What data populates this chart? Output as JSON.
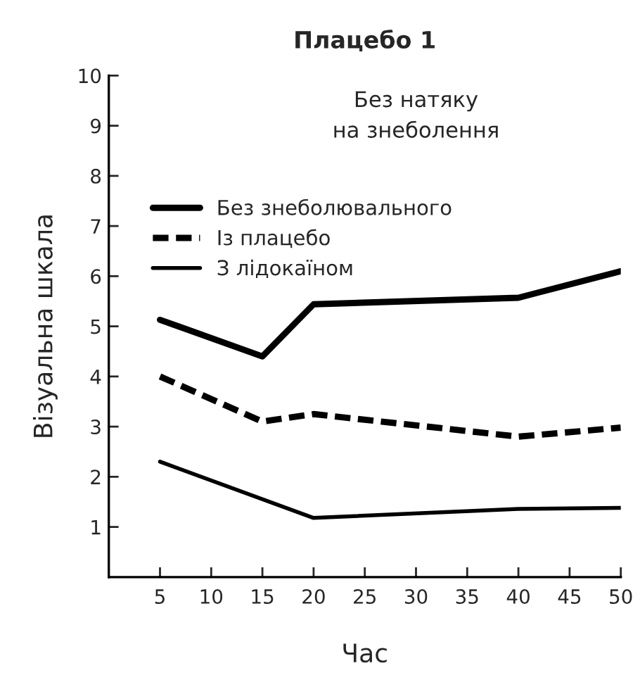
{
  "chart_data": {
    "type": "line",
    "title": "Плацебо 1",
    "xlabel": "Час",
    "ylabel": "Візуальна шкала",
    "annotations": [
      "Без натяку\nна знеболення"
    ],
    "x": [
      5,
      15,
      20,
      40,
      50
    ],
    "series": [
      {
        "name": "Без знеболювального",
        "color": "#000000",
        "line_style": "solid",
        "values": [
          5.13,
          4.4,
          5.44,
          5.57,
          6.1
        ]
      },
      {
        "name": "Із плацебо",
        "color": "#000000",
        "line_style": "dashed",
        "values": [
          4.0,
          3.1,
          3.25,
          2.8,
          2.98
        ]
      },
      {
        "name": "З лідокаїном",
        "color": "#000000",
        "line_style": "solid",
        "x": [
          5,
          20,
          40,
          50
        ],
        "values": [
          2.3,
          1.18,
          1.36,
          1.38
        ]
      }
    ],
    "xlim": [
      0,
      50
    ],
    "ylim": [
      0,
      10
    ],
    "xticks": [
      5,
      10,
      15,
      20,
      25,
      30,
      35,
      40,
      45,
      50
    ],
    "yticks": [
      1,
      2,
      3,
      4,
      5,
      6,
      7,
      8,
      9,
      10
    ],
    "grid": false,
    "legend": "top left",
    "marker": "none"
  }
}
